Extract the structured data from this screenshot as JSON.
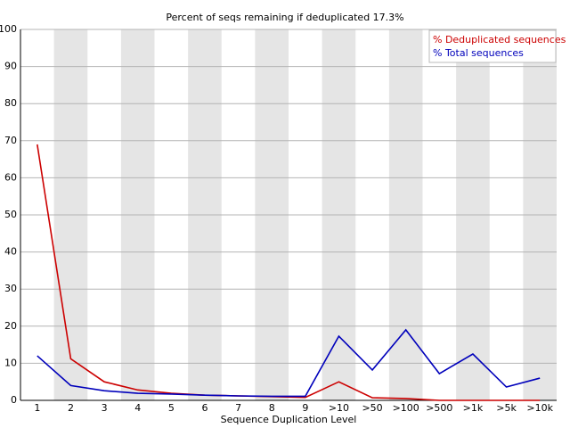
{
  "chart_data": {
    "type": "line",
    "title": "Percent of seqs remaining if deduplicated 17.3%",
    "x_label": "Sequence Duplication Level",
    "categories": [
      "1",
      "2",
      "3",
      "4",
      "5",
      "6",
      "7",
      "8",
      "9",
      ">10",
      ">50",
      ">100",
      ">500",
      ">1k",
      ">5k",
      ">10k"
    ],
    "series": [
      {
        "name": "% Deduplicated sequences",
        "color": "#cc0000",
        "values": [
          69,
          11.2,
          5,
          2.8,
          1.9,
          1.4,
          1.2,
          1.0,
          0.8,
          5,
          0.7,
          0.5,
          0,
          0,
          0,
          0
        ]
      },
      {
        "name": "% Total sequences",
        "color": "#0000bb",
        "values": [
          12,
          4,
          2.6,
          1.9,
          1.7,
          1.4,
          1.2,
          1.1,
          1.1,
          17.3,
          8.2,
          19,
          7.2,
          12.5,
          3.6,
          6
        ]
      }
    ],
    "ylim": [
      0,
      100
    ],
    "yticks": [
      0,
      10,
      20,
      30,
      40,
      50,
      60,
      70,
      80,
      90,
      100
    ],
    "grid": true,
    "legend": "top-right"
  }
}
